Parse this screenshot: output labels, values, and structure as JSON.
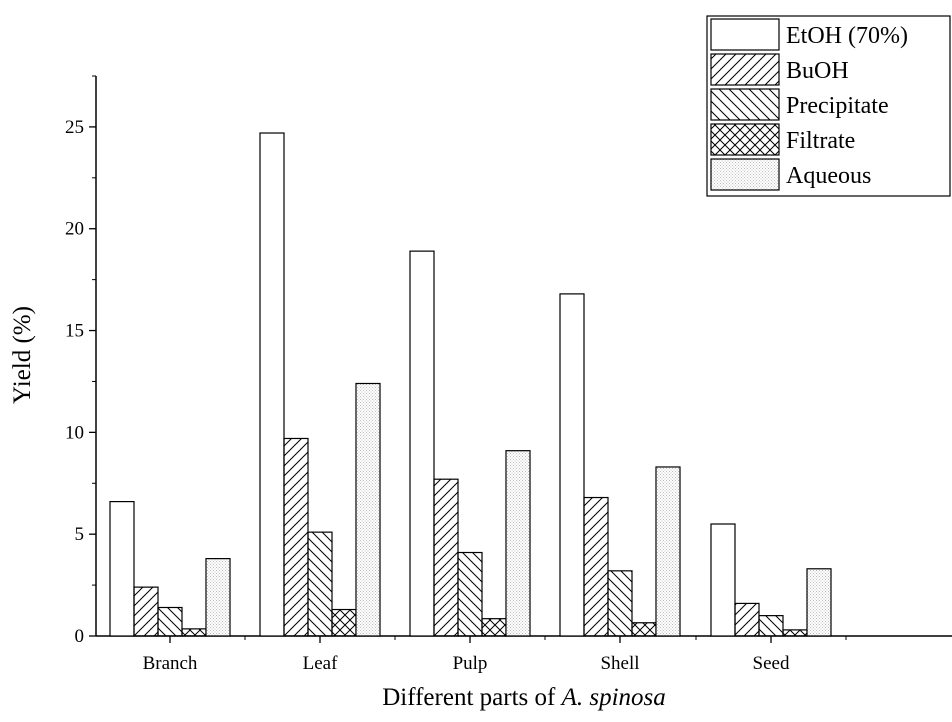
{
  "chart_data": {
    "type": "bar",
    "title": "",
    "xlabel_prefix": "Different parts of ",
    "xlabel_italic": "A. spinosa",
    "ylabel": "Yield (%)",
    "ylim": [
      0,
      27.5
    ],
    "yticks": [
      0,
      5,
      10,
      15,
      20,
      25
    ],
    "categories": [
      "Branch",
      "Leaf",
      "Pulp",
      "Shell",
      "Seed"
    ],
    "series": [
      {
        "name": "EtOH (70%)",
        "pattern": "none",
        "values": [
          6.6,
          24.7,
          18.9,
          16.8,
          5.5
        ]
      },
      {
        "name": "BuOH",
        "pattern": "diag-right",
        "values": [
          2.4,
          9.7,
          7.7,
          6.8,
          1.6
        ]
      },
      {
        "name": "Precipitate",
        "pattern": "diag-left",
        "values": [
          1.4,
          5.1,
          4.1,
          3.2,
          1.0
        ]
      },
      {
        "name": "Filtrate",
        "pattern": "cross",
        "values": [
          0.35,
          1.3,
          0.85,
          0.65,
          0.3
        ]
      },
      {
        "name": "Aqueous",
        "pattern": "dots",
        "values": [
          3.8,
          12.4,
          9.1,
          8.3,
          3.3
        ]
      }
    ],
    "legend_position": "top-right",
    "grid": false,
    "colors": {
      "stroke": "#000000",
      "fill": "#ffffff",
      "dots": "#bdbdbd"
    }
  }
}
